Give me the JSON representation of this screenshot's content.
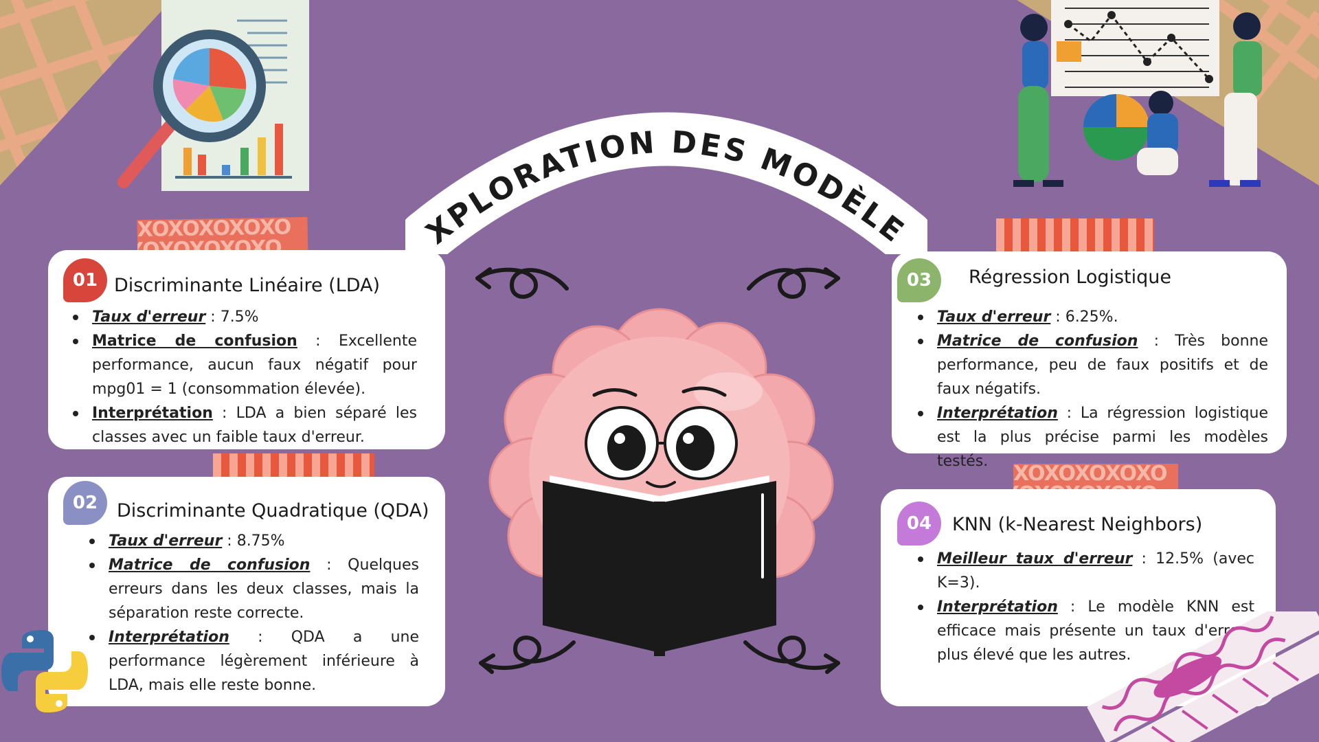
{
  "title": "EXPLORATION DES MODÈLES",
  "colors": {
    "background": "#8a6a9e",
    "badge_1": "#d8453a",
    "badge_2": "#8a8fc4",
    "badge_3": "#8cb46a",
    "badge_4": "#c37ad8"
  },
  "cards": [
    {
      "number": "01",
      "title": "Discriminante Linéaire (LDA)",
      "items": [
        {
          "label": "Taux d'erreur",
          "text": " : 7.5%"
        },
        {
          "label": "Matrice de confusion",
          "text": " : Excellente performance, aucun faux négatif pour mpg01 = 1 (consommation élevée)."
        },
        {
          "label": "Interprétation",
          "text": " : LDA a bien séparé les classes avec un faible taux d'erreur."
        }
      ]
    },
    {
      "number": "02",
      "title": "Discriminante Quadratique (QDA)",
      "items": [
        {
          "label": "Taux d'erreur",
          "text": " : 8.75%"
        },
        {
          "label": "Matrice de confusion",
          "text": " : Quelques erreurs dans les deux classes, mais la séparation reste correcte."
        },
        {
          "label": "Interprétation",
          "text": " : QDA a une performance légèrement inférieure à LDA, mais elle reste bonne."
        }
      ]
    },
    {
      "number": "03",
      "title": "Régression Logistique",
      "items": [
        {
          "label": "Taux d'erreur",
          "text": " : 6.25%."
        },
        {
          "label": "Matrice de confusion",
          "text": " : Très bonne performance, peu de faux positifs et de faux négatifs."
        },
        {
          "label": "Interprétation",
          "text": " : La régression logistique est la plus précise parmi les modèles testés."
        }
      ]
    },
    {
      "number": "04",
      "title": "KNN (k-Nearest Neighbors)",
      "items": [
        {
          "label": "Meilleur taux d'erreur",
          "text": " : 12.5% (avec K=3)."
        },
        {
          "label": "Interprétation",
          "text": " : Le modèle KNN est efficace mais présente un taux d'erreur plus élevé que les autres."
        }
      ]
    }
  ],
  "tape_text": "XOXOXOXOXO",
  "icons": [
    "magnifier-chart-icon",
    "team-chart-illustration",
    "brain-reading-mascot",
    "python-logo-icon",
    "swirl-arrow-icon",
    "pencil-decoration"
  ]
}
